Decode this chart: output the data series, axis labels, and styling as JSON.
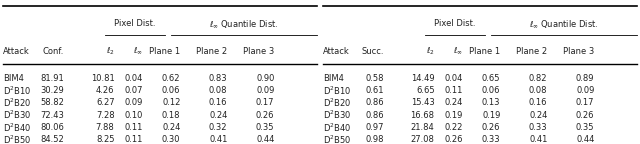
{
  "left_table": {
    "col2_header": "Conf.",
    "rows": [
      [
        "BIM4",
        "81.91",
        "10.81",
        "0.04",
        "0.62",
        "0.83",
        "0.90"
      ],
      [
        "D^2B10",
        "30.29",
        "4.26",
        "0.07",
        "0.06",
        "0.08",
        "0.09"
      ],
      [
        "D^2B20",
        "58.82",
        "6.27",
        "0.09",
        "0.12",
        "0.16",
        "0.17"
      ],
      [
        "D^2B30",
        "72.43",
        "7.28",
        "0.10",
        "0.18",
        "0.24",
        "0.26"
      ],
      [
        "D^2B40",
        "80.06",
        "7.88",
        "0.11",
        "0.24",
        "0.32",
        "0.35"
      ],
      [
        "D^2B50",
        "84.52",
        "8.25",
        "0.11",
        "0.30",
        "0.41",
        "0.44"
      ]
    ]
  },
  "right_table": {
    "col2_header": "Succ.",
    "rows": [
      [
        "BIM4",
        "0.58",
        "14.49",
        "0.04",
        "0.65",
        "0.82",
        "0.89"
      ],
      [
        "D^2B10",
        "0.61",
        "6.65",
        "0.11",
        "0.06",
        "0.08",
        "0.09"
      ],
      [
        "D^2B20",
        "0.86",
        "15.43",
        "0.24",
        "0.13",
        "0.16",
        "0.17"
      ],
      [
        "D^2B30",
        "0.86",
        "16.68",
        "0.19",
        "0.19",
        "0.24",
        "0.26"
      ],
      [
        "D^2B40",
        "0.97",
        "21.84",
        "0.22",
        "0.26",
        "0.33",
        "0.35"
      ],
      [
        "D^2B50",
        "0.98",
        "27.08",
        "0.26",
        "0.33",
        "0.41",
        "0.44"
      ]
    ]
  },
  "font_size": 6.0,
  "bg_color": "#ffffff",
  "text_color": "#222222",
  "line_color": "#000000"
}
